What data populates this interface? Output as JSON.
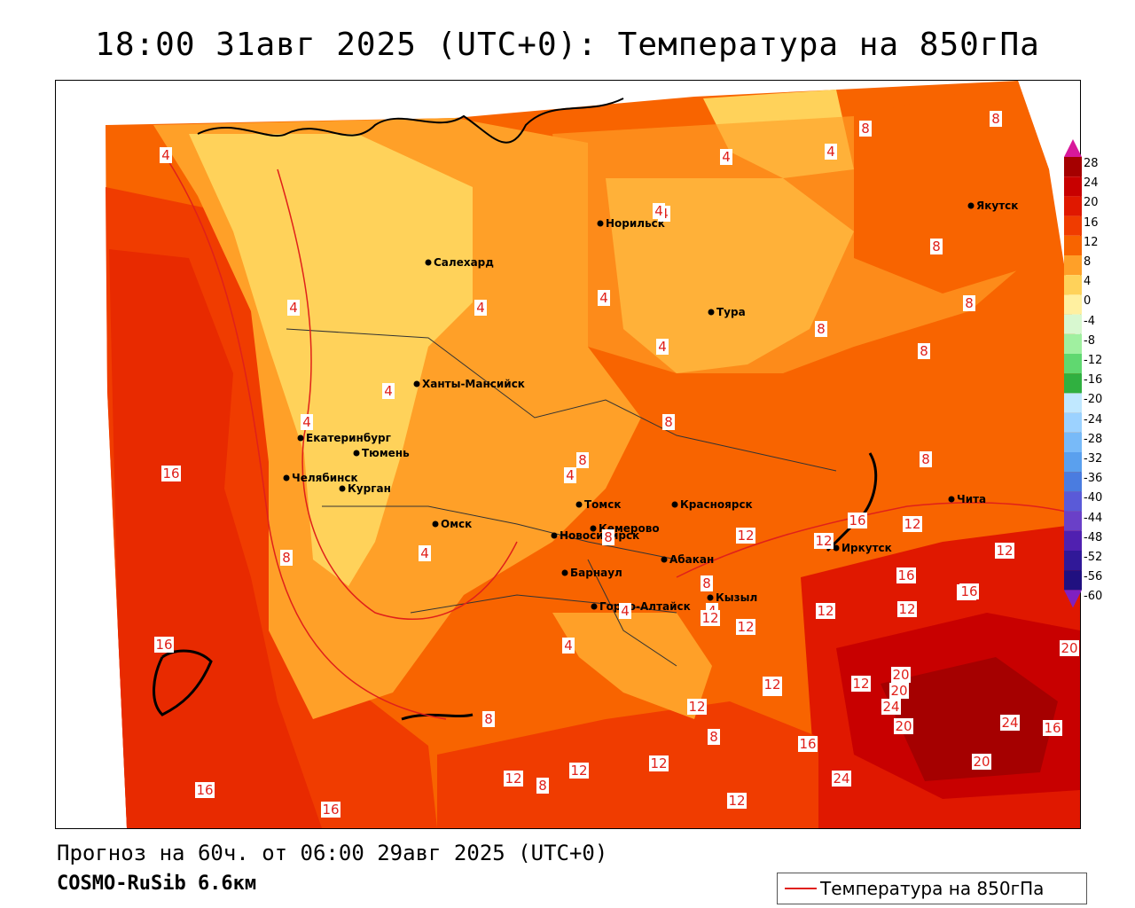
{
  "title": "18:00 31авг 2025 (UTC+0): Температура на 850гПа",
  "forecast_line": "Прогноз на 60ч. от 06:00 29авг 2025 (UTC+0)",
  "model_line": "COSMO-RuSib 6.6км",
  "legend": {
    "label": "Температура на 850гПа",
    "color": "#e0201a"
  },
  "colorbar": {
    "ticks": [
      "28",
      "24",
      "20",
      "16",
      "12",
      "8",
      "4",
      "0",
      "-4",
      "-8",
      "-12",
      "-16",
      "-20",
      "-24",
      "-28",
      "-32",
      "-36",
      "-40",
      "-44",
      "-48",
      "-52",
      "-56",
      "-60"
    ],
    "colors": [
      "#a50000",
      "#c80000",
      "#e01800",
      "#f03c00",
      "#f86400",
      "#ffa028",
      "#ffd25a",
      "#fff0a0",
      "#d8f8d0",
      "#a0f0a0",
      "#60d870",
      "#30b040",
      "#c0e8ff",
      "#9cd2ff",
      "#78baf8",
      "#5aa0ee",
      "#4a7ce0",
      "#5a5ad8",
      "#6a40c8",
      "#5020b0",
      "#301898",
      "#201080"
    ],
    "top_arrow_color": "#d8189a",
    "bottom_arrow_color": "#8020c0"
  },
  "cities": [
    {
      "name": "Норильск"
    },
    {
      "name": "Якутск"
    },
    {
      "name": "Салехард"
    },
    {
      "name": "Тура"
    },
    {
      "name": "Ханты-Мансийск"
    },
    {
      "name": "Екатеринбург"
    },
    {
      "name": "Тюмень"
    },
    {
      "name": "Челябинск"
    },
    {
      "name": "Курган"
    },
    {
      "name": "Омск"
    },
    {
      "name": "Томск"
    },
    {
      "name": "Красноярск"
    },
    {
      "name": "Новосибирск"
    },
    {
      "name": "Кемерово"
    },
    {
      "name": "Абакан"
    },
    {
      "name": "Барнаул"
    },
    {
      "name": "Иркутск"
    },
    {
      "name": "Чита"
    },
    {
      "name": "Кызыл"
    },
    {
      "name": "Горно-Алтайск"
    }
  ],
  "contour_labels": [
    "4",
    "4",
    "4",
    "4",
    "4",
    "4",
    "4",
    "4",
    "4",
    "4",
    "4",
    "4",
    "4",
    "4",
    "4",
    "4",
    "8",
    "8",
    "8",
    "8",
    "8",
    "8",
    "8",
    "8",
    "8",
    "8",
    "8",
    "8",
    "8",
    "8",
    "8",
    "12",
    "12",
    "12",
    "12",
    "12",
    "12",
    "12",
    "12",
    "12",
    "12",
    "12",
    "12",
    "12",
    "12",
    "12",
    "12",
    "16",
    "16",
    "16",
    "16",
    "16",
    "16",
    "16",
    "16",
    "16",
    "16",
    "20",
    "20",
    "20",
    "20",
    "20",
    "24",
    "24",
    "24"
  ]
}
